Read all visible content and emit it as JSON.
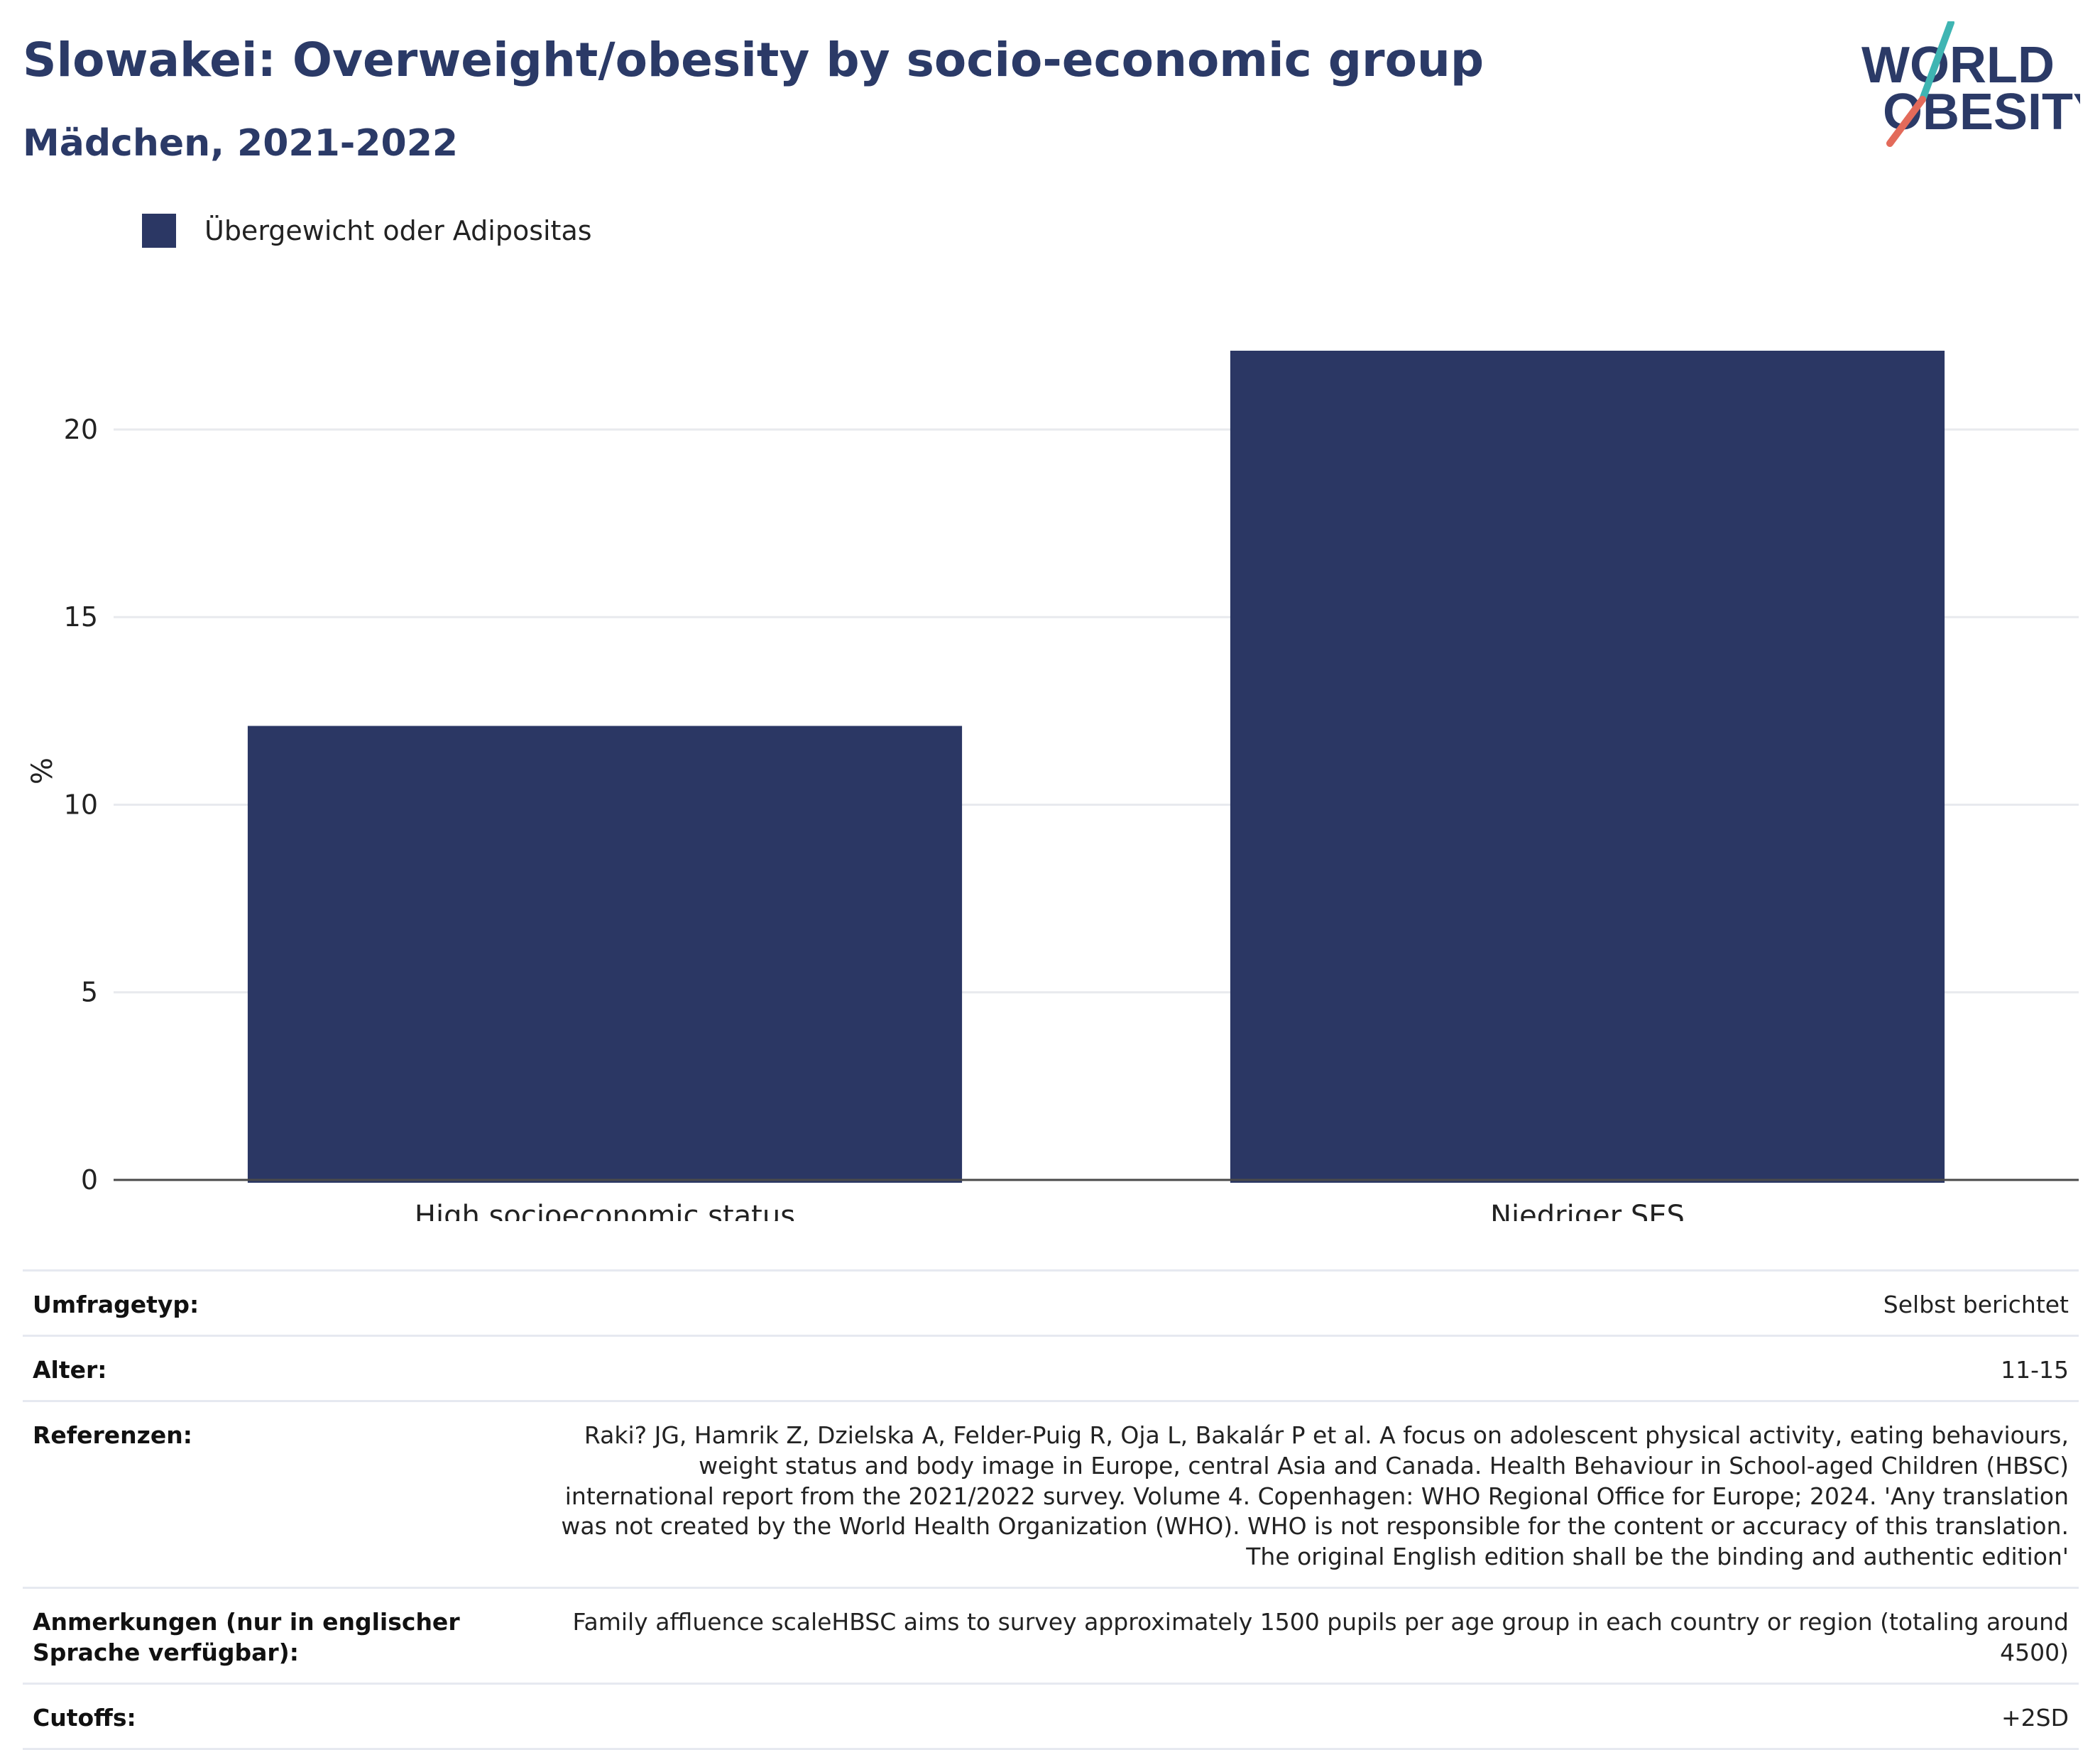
{
  "header": {
    "title": "Slowakei: Overweight/obesity by socio-economic group",
    "subtitle": "Mädchen, 2021-2022"
  },
  "logo": {
    "line1": "WORLD",
    "line2": "OBESITY"
  },
  "colors": {
    "bar": "#2b3764",
    "title": "#2b3a67",
    "grid": "#e8eaee",
    "axis": "#4a4a4a",
    "logo_teal": "#3fb5b3",
    "logo_coral": "#e36a5a"
  },
  "chart_data": {
    "type": "bar",
    "categories": [
      "High socioeconomic status",
      "Niedriger SES"
    ],
    "series": [
      {
        "name": "Übergewicht oder Adipositas",
        "values": [
          12.1,
          22.1
        ]
      }
    ],
    "ylabel": "%",
    "ylim": [
      0,
      23.5
    ],
    "yticks": [
      0,
      5,
      10,
      15,
      20
    ],
    "grid": true,
    "legend": "top-left"
  },
  "meta": [
    {
      "key": "Umfragetyp:",
      "value": "Selbst berichtet"
    },
    {
      "key": "Alter:",
      "value": "11-15"
    },
    {
      "key": "Referenzen:",
      "value": "Raki? JG, Hamrik Z, Dzielska A, Felder-Puig R, Oja L, Bakalár P et al. A focus on adolescent physical activity, eating behaviours, weight status and body image in Europe, central Asia and Canada. Health Behaviour in School-aged Children (HBSC) international report from the 2021/2022 survey. Volume 4. Copenhagen: WHO Regional Office for Europe; 2024. 'Any translation was not created by the World Health Organization (WHO). WHO is not responsible for the content or accuracy of this translation. The original English edition shall be the binding and authentic edition'"
    },
    {
      "key": "Anmerkungen (nur in englischer Sprache verfügbar):",
      "value": "Family affluence scaleHBSC aims to survey approximately 1500 pupils per age group in each country or region (totaling around 4500)"
    },
    {
      "key": "Cutoffs:",
      "value": "+2SD"
    }
  ]
}
